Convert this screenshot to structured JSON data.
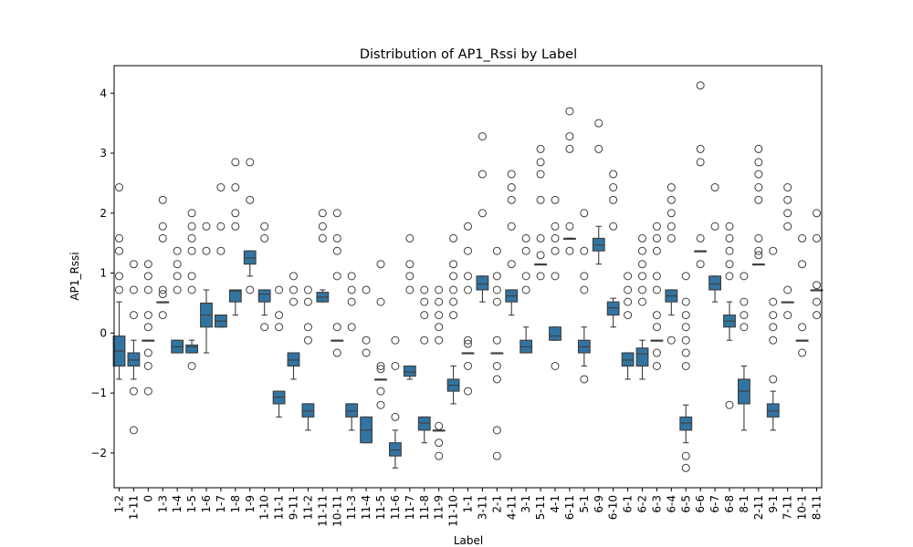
{
  "chart_data": {
    "type": "box",
    "title": "Distribution of AP1_Rssi by Label",
    "xlabel": "Label",
    "ylabel": "AP1_Rssi",
    "ylim": [
      -2.58,
      4.46
    ],
    "yticks": [
      -2,
      -1,
      0,
      1,
      2,
      3,
      4
    ],
    "grid": false,
    "box_color": "#3274a1",
    "categories": [
      "1-2",
      "1-11",
      "0",
      "1-3",
      "1-4",
      "1-5",
      "1-6",
      "1-7",
      "1-8",
      "1-9",
      "1-10",
      "11-1",
      "9-11",
      "11-2",
      "11-11",
      "10-11",
      "11-3",
      "11-4",
      "11-5",
      "11-6",
      "11-7",
      "11-8",
      "11-9",
      "11-10",
      "1-1",
      "3-11",
      "2-1",
      "4-11",
      "3-1",
      "5-11",
      "4-1",
      "6-11",
      "5-1",
      "6-9",
      "6-10",
      "6-1",
      "6-2",
      "6-3",
      "6-4",
      "6-5",
      "6-6",
      "6-7",
      "6-8",
      "8-1",
      "2-11",
      "9-1",
      "7-11",
      "10-1",
      "8-11"
    ],
    "boxes": [
      {
        "min": -0.77,
        "q1": -0.55,
        "median": -0.3,
        "q3": -0.05,
        "max": 0.52,
        "outliers": [
          0.72,
          0.95,
          1.37,
          1.58,
          2.43
        ]
      },
      {
        "min": -0.77,
        "q1": -0.55,
        "median": -0.45,
        "q3": -0.33,
        "max": -0.12,
        "outliers": [
          -1.62,
          -0.97,
          0.3,
          0.72,
          1.15
        ]
      },
      {
        "min": -0.12,
        "q1": -0.12,
        "median": -0.12,
        "q3": -0.12,
        "max": -0.12,
        "outliers": [
          -0.97,
          -0.55,
          -0.33,
          0.1,
          0.3,
          0.72,
          0.95,
          1.15
        ]
      },
      {
        "min": 0.52,
        "q1": 0.52,
        "median": 0.52,
        "q3": 0.52,
        "max": 0.52,
        "outliers": [
          0.3,
          0.65,
          0.72,
          1.58,
          1.78,
          2.22
        ]
      },
      {
        "min": -0.33,
        "q1": -0.33,
        "median": -0.23,
        "q3": -0.12,
        "max": -0.12,
        "outliers": [
          0.72,
          0.95,
          1.15,
          1.37
        ]
      },
      {
        "min": -0.33,
        "q1": -0.33,
        "median": -0.23,
        "q3": -0.2,
        "max": -0.12,
        "outliers": [
          -0.55,
          0.72,
          0.95,
          1.37,
          1.58,
          1.78,
          2.0
        ]
      },
      {
        "min": -0.33,
        "q1": 0.1,
        "median": 0.3,
        "q3": 0.5,
        "max": 0.72,
        "outliers": [
          1.37,
          1.78
        ]
      },
      {
        "min": 0.1,
        "q1": 0.1,
        "median": 0.2,
        "q3": 0.3,
        "max": 0.3,
        "outliers": [
          1.37,
          1.78,
          2.43
        ]
      },
      {
        "min": 0.3,
        "q1": 0.52,
        "median": 0.7,
        "q3": 0.72,
        "max": 0.72,
        "outliers": [
          1.78,
          2.0,
          2.43,
          2.85
        ]
      },
      {
        "min": 0.95,
        "q1": 1.15,
        "median": 1.25,
        "q3": 1.37,
        "max": 1.37,
        "outliers": [
          0.72,
          2.22,
          2.85
        ]
      },
      {
        "min": 0.3,
        "q1": 0.52,
        "median": 0.65,
        "q3": 0.72,
        "max": 0.72,
        "outliers": [
          0.1,
          1.58,
          1.78
        ]
      },
      {
        "min": -1.4,
        "q1": -1.18,
        "median": -1.07,
        "q3": -0.97,
        "max": -0.97,
        "outliers": [
          0.1,
          0.3,
          0.72
        ]
      },
      {
        "min": -0.77,
        "q1": -0.55,
        "median": -0.45,
        "q3": -0.33,
        "max": -0.33,
        "outliers": [
          0.52,
          0.72,
          0.95
        ]
      },
      {
        "min": -1.62,
        "q1": -1.4,
        "median": -1.3,
        "q3": -1.18,
        "max": -1.18,
        "outliers": [
          -0.12,
          0.1,
          0.52,
          0.72
        ]
      },
      {
        "min": 0.52,
        "q1": 0.52,
        "median": 0.6,
        "q3": 0.68,
        "max": 0.72,
        "outliers": [
          1.58,
          1.78,
          2.0
        ]
      },
      {
        "min": -0.12,
        "q1": -0.12,
        "median": -0.12,
        "q3": -0.12,
        "max": -0.12,
        "outliers": [
          -0.33,
          0.1,
          0.95,
          1.37,
          1.58,
          2.0
        ]
      },
      {
        "min": -1.62,
        "q1": -1.4,
        "median": -1.3,
        "q3": -1.18,
        "max": -1.18,
        "outliers": [
          0.1,
          0.52,
          0.72,
          0.95
        ]
      },
      {
        "min": -1.83,
        "q1": -1.83,
        "median": -1.62,
        "q3": -1.4,
        "max": -1.4,
        "outliers": [
          -0.33,
          -0.12,
          0.72
        ]
      },
      {
        "min": -0.77,
        "q1": -0.77,
        "median": -0.77,
        "q3": -0.77,
        "max": -0.77,
        "outliers": [
          -1.2,
          -0.97,
          -0.6,
          -0.55,
          0.52,
          1.15
        ]
      },
      {
        "min": -2.25,
        "q1": -2.05,
        "median": -1.95,
        "q3": -1.83,
        "max": -1.62,
        "outliers": [
          -1.4,
          -0.55,
          -0.12
        ]
      },
      {
        "min": -0.77,
        "q1": -0.72,
        "median": -0.65,
        "q3": -0.55,
        "max": -0.55,
        "outliers": [
          0.72,
          0.95,
          1.15,
          1.58
        ]
      },
      {
        "min": -1.83,
        "q1": -1.62,
        "median": -1.5,
        "q3": -1.4,
        "max": -1.4,
        "outliers": [
          -0.12,
          0.3,
          0.52,
          0.72
        ]
      },
      {
        "min": -1.62,
        "q1": -1.62,
        "median": -1.62,
        "q3": -1.62,
        "max": -1.62,
        "outliers": [
          -2.05,
          -1.83,
          -1.55,
          -0.12,
          0.1,
          0.3,
          0.52,
          0.72
        ]
      },
      {
        "min": -1.18,
        "q1": -0.97,
        "median": -0.87,
        "q3": -0.77,
        "max": -0.55,
        "outliers": [
          0.3,
          0.52,
          0.72,
          0.95,
          1.15,
          1.58
        ]
      },
      {
        "min": -0.33,
        "q1": -0.33,
        "median": -0.33,
        "q3": -0.33,
        "max": -0.33,
        "outliers": [
          -0.97,
          -0.55,
          -0.18,
          -0.12,
          0.72,
          0.95,
          1.37,
          1.78
        ]
      },
      {
        "min": 0.52,
        "q1": 0.72,
        "median": 0.82,
        "q3": 0.95,
        "max": 0.95,
        "outliers": [
          2.0,
          2.65,
          3.28
        ]
      },
      {
        "min": -0.33,
        "q1": -0.33,
        "median": -0.33,
        "q3": -0.33,
        "max": -0.33,
        "outliers": [
          -2.05,
          -1.62,
          -0.77,
          -0.55,
          -0.12,
          0.52,
          0.72,
          0.95,
          1.37
        ]
      },
      {
        "min": 0.3,
        "q1": 0.52,
        "median": 0.62,
        "q3": 0.72,
        "max": 0.72,
        "outliers": [
          1.15,
          1.78,
          2.22,
          2.43,
          2.65
        ]
      },
      {
        "min": -0.33,
        "q1": -0.33,
        "median": -0.23,
        "q3": -0.12,
        "max": 0.1,
        "outliers": [
          0.72,
          0.95,
          1.37,
          1.58
        ]
      },
      {
        "min": 1.15,
        "q1": 1.15,
        "median": 1.15,
        "q3": 1.15,
        "max": 1.15,
        "outliers": [
          0.95,
          1.3,
          1.58,
          2.22,
          2.65,
          2.85,
          3.07
        ]
      },
      {
        "min": -0.12,
        "q1": -0.12,
        "median": -0.05,
        "q3": 0.1,
        "max": 0.1,
        "outliers": [
          -0.55,
          0.95,
          1.37,
          1.58,
          1.78,
          2.22
        ]
      },
      {
        "min": 1.58,
        "q1": 1.58,
        "median": 1.58,
        "q3": 1.58,
        "max": 1.58,
        "outliers": [
          1.37,
          1.78,
          3.07,
          3.28,
          3.7
        ]
      },
      {
        "min": -0.55,
        "q1": -0.33,
        "median": -0.23,
        "q3": -0.12,
        "max": 0.1,
        "outliers": [
          -0.77,
          0.72,
          0.95,
          1.37,
          2.0
        ]
      },
      {
        "min": 1.15,
        "q1": 1.37,
        "median": 1.47,
        "q3": 1.58,
        "max": 1.78,
        "outliers": [
          3.07,
          3.5
        ]
      },
      {
        "min": 0.1,
        "q1": 0.3,
        "median": 0.42,
        "q3": 0.52,
        "max": 0.58,
        "outliers": [
          1.78,
          2.22,
          2.43,
          2.65
        ]
      },
      {
        "min": -0.77,
        "q1": -0.55,
        "median": -0.45,
        "q3": -0.33,
        "max": -0.33,
        "outliers": [
          0.3,
          0.52,
          0.72,
          0.95
        ]
      },
      {
        "min": -0.77,
        "q1": -0.55,
        "median": -0.35,
        "q3": -0.25,
        "max": -0.12,
        "outliers": [
          0.52,
          0.72,
          0.95,
          1.15,
          1.37,
          1.58
        ]
      },
      {
        "min": -0.12,
        "q1": -0.12,
        "median": -0.12,
        "q3": -0.12,
        "max": -0.12,
        "outliers": [
          -0.55,
          -0.33,
          0.1,
          0.3,
          0.72,
          0.95,
          1.37,
          1.58,
          1.78
        ]
      },
      {
        "min": 0.3,
        "q1": 0.52,
        "median": 0.62,
        "q3": 0.72,
        "max": 0.72,
        "outliers": [
          -0.12,
          1.58,
          1.78,
          2.0,
          2.22,
          2.43
        ]
      },
      {
        "min": -1.83,
        "q1": -1.62,
        "median": -1.5,
        "q3": -1.4,
        "max": -1.2,
        "outliers": [
          -2.25,
          -2.05,
          -0.55,
          -0.33,
          -0.12,
          0.1,
          0.3,
          0.52,
          0.95
        ]
      },
      {
        "min": 1.37,
        "q1": 1.37,
        "median": 1.37,
        "q3": 1.37,
        "max": 1.37,
        "outliers": [
          1.15,
          1.58,
          2.85,
          3.07,
          4.13
        ]
      },
      {
        "min": 0.52,
        "q1": 0.72,
        "median": 0.82,
        "q3": 0.95,
        "max": 0.95,
        "outliers": [
          1.78,
          2.43
        ]
      },
      {
        "min": -0.12,
        "q1": 0.1,
        "median": 0.2,
        "q3": 0.3,
        "max": 0.52,
        "outliers": [
          -1.2,
          0.95,
          1.15,
          1.37,
          1.58,
          1.78
        ]
      },
      {
        "min": -1.62,
        "q1": -1.18,
        "median": -0.97,
        "q3": -0.77,
        "max": -0.55,
        "outliers": [
          0.1,
          0.3,
          0.52,
          0.95
        ]
      },
      {
        "min": 1.15,
        "q1": 1.15,
        "median": 1.15,
        "q3": 1.15,
        "max": 1.15,
        "outliers": [
          1.3,
          1.37,
          1.58,
          2.22,
          2.43,
          2.65,
          2.85,
          3.07
        ]
      },
      {
        "min": -1.62,
        "q1": -1.4,
        "median": -1.3,
        "q3": -1.18,
        "max": -0.97,
        "outliers": [
          -0.77,
          -0.12,
          0.1,
          0.3,
          0.52,
          1.37
        ]
      },
      {
        "min": 0.52,
        "q1": 0.52,
        "median": 0.52,
        "q3": 0.52,
        "max": 0.52,
        "outliers": [
          0.3,
          0.72,
          1.78,
          2.0,
          2.22,
          2.43
        ]
      },
      {
        "min": -0.12,
        "q1": -0.12,
        "median": -0.12,
        "q3": -0.12,
        "max": -0.12,
        "outliers": [
          -0.33,
          0.1,
          1.15,
          1.58
        ]
      },
      {
        "min": 0.72,
        "q1": 0.72,
        "median": 0.72,
        "q3": 0.72,
        "max": 0.72,
        "outliers": [
          0.3,
          0.52,
          0.8,
          1.58,
          2.0
        ]
      }
    ]
  }
}
